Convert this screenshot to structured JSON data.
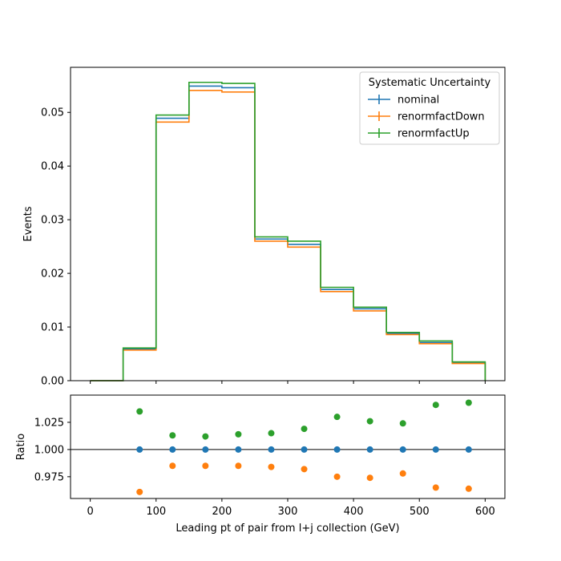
{
  "chart_data": [
    {
      "type": "line",
      "drawstyle": "steps",
      "xlabel": "",
      "ylabel": "Events",
      "xlim": [
        -30,
        630
      ],
      "ylim": [
        0,
        0.0584
      ],
      "x_ticks": [
        "0",
        "100",
        "200",
        "300",
        "400",
        "500",
        "600"
      ],
      "y_ticks": [
        "0.00",
        "0.01",
        "0.02",
        "0.03",
        "0.04",
        "0.05"
      ],
      "bin_edges": [
        0,
        50,
        100,
        150,
        200,
        250,
        300,
        350,
        400,
        450,
        500,
        550,
        600
      ],
      "legend": {
        "title": "Systematic Uncertainty",
        "position": "top-right"
      },
      "series": [
        {
          "name": "nominal",
          "color": "#1f77b4",
          "values": [
            0.0,
            0.0059,
            0.0489,
            0.0549,
            0.0546,
            0.0264,
            0.0254,
            0.017,
            0.0134,
            0.0088,
            0.0071,
            0.0033
          ]
        },
        {
          "name": "renormfactDown",
          "color": "#ff7f0e",
          "values": [
            0.0,
            0.0057,
            0.0482,
            0.0541,
            0.0538,
            0.026,
            0.0249,
            0.0166,
            0.013,
            0.0086,
            0.0069,
            0.0032
          ]
        },
        {
          "name": "renormfactUp",
          "color": "#2ca02c",
          "values": [
            0.0,
            0.0061,
            0.0495,
            0.0556,
            0.0554,
            0.0268,
            0.026,
            0.0174,
            0.0137,
            0.009,
            0.0074,
            0.0035
          ]
        }
      ]
    },
    {
      "type": "scatter",
      "xlabel": "Leading pt of pair from l+j collection (GeV)",
      "ylabel": "Ratio",
      "xlim": [
        -30,
        630
      ],
      "ylim": [
        0.955,
        1.05
      ],
      "x_ticks": [
        "0",
        "100",
        "200",
        "300",
        "400",
        "500",
        "600"
      ],
      "y_ticks": [
        "0.975",
        "1.000",
        "1.025"
      ],
      "reference_line": 1.0,
      "x": [
        75,
        125,
        175,
        225,
        275,
        325,
        375,
        425,
        475,
        525,
        575
      ],
      "series": [
        {
          "color": "#1f77b4",
          "values": [
            1.0,
            1.0,
            1.0,
            1.0,
            1.0,
            1.0,
            1.0,
            1.0,
            1.0,
            1.0,
            1.0
          ]
        },
        {
          "color": "#ff7f0e",
          "values": [
            0.961,
            0.985,
            0.985,
            0.985,
            0.984,
            0.982,
            0.975,
            0.974,
            0.978,
            0.965,
            0.964
          ]
        },
        {
          "color": "#2ca02c",
          "values": [
            1.035,
            1.013,
            1.012,
            1.014,
            1.015,
            1.019,
            1.03,
            1.026,
            1.024,
            1.041,
            1.043
          ]
        }
      ]
    }
  ]
}
